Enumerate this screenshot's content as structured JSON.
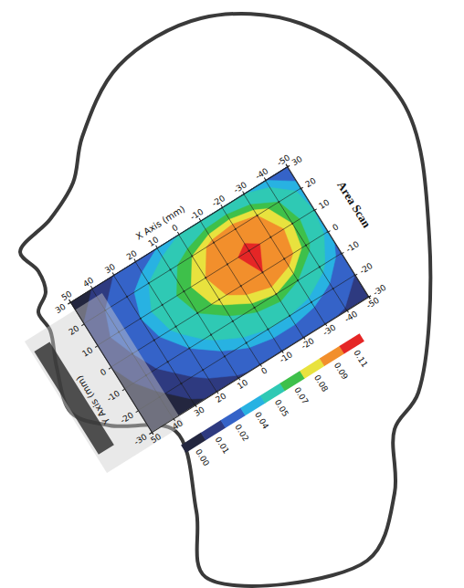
{
  "chart_data": {
    "type": "heatmap",
    "title": "Area Scan",
    "xlabel": "X Axis (mm)",
    "ylabel": "Y Axis (mm)",
    "x": [
      50,
      40,
      30,
      20,
      10,
      0,
      -10,
      -20,
      -30,
      -40,
      -50
    ],
    "y": [
      30,
      20,
      10,
      0,
      -10,
      -20,
      -30
    ],
    "cells": [
      [
        0.005,
        0.01,
        0.02,
        0.03,
        0.04,
        0.05,
        0.055,
        0.055,
        0.05,
        0.04,
        0.03
      ],
      [
        0.01,
        0.02,
        0.035,
        0.05,
        0.065,
        0.08,
        0.095,
        0.1,
        0.09,
        0.07,
        0.045
      ],
      [
        0.012,
        0.025,
        0.04,
        0.06,
        0.075,
        0.09,
        0.105,
        0.115,
        0.105,
        0.08,
        0.05
      ],
      [
        0.01,
        0.02,
        0.035,
        0.055,
        0.07,
        0.085,
        0.1,
        0.11,
        0.1,
        0.075,
        0.045
      ],
      [
        0.006,
        0.015,
        0.025,
        0.04,
        0.055,
        0.065,
        0.075,
        0.08,
        0.07,
        0.055,
        0.035
      ],
      [
        0.003,
        0.008,
        0.015,
        0.025,
        0.035,
        0.045,
        0.05,
        0.05,
        0.045,
        0.035,
        0.02
      ],
      [
        0.001,
        0.004,
        0.008,
        0.012,
        0.018,
        0.022,
        0.025,
        0.025,
        0.022,
        0.018,
        0.01
      ]
    ],
    "xlim": [
      50,
      -50
    ],
    "ylim": [
      -30,
      30
    ],
    "xticks": [
      50,
      40,
      30,
      20,
      10,
      0,
      -10,
      -20,
      -30,
      -40,
      -50
    ],
    "yticks": [
      -30,
      -20,
      -10,
      0,
      10,
      20,
      30
    ],
    "grid": true,
    "color_bar": {
      "ticks": [
        {
          "value": 0,
          "label": "0.00"
        },
        0.01,
        0.02,
        0.04,
        0.05,
        0.07,
        0.08,
        0.09,
        0.11
      ],
      "colors": [
        "#23263f",
        "#2e3a80",
        "#3563c8",
        "#28b2e2",
        "#2fc9b4",
        "#3ec04a",
        "#e8e23e",
        "#f28f2c",
        "#e52626"
      ]
    }
  }
}
